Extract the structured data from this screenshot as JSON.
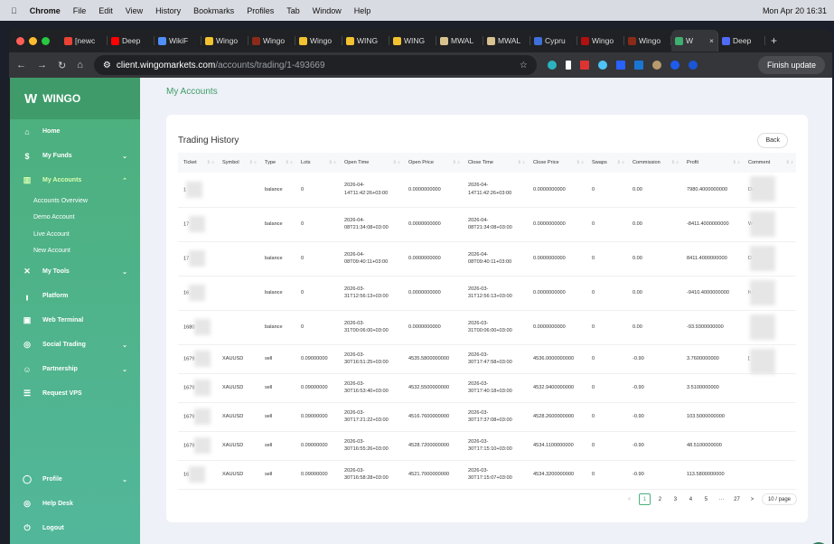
{
  "menubar": {
    "app": "Chrome",
    "items": [
      "File",
      "Edit",
      "View",
      "History",
      "Bookmarks",
      "Profiles",
      "Tab",
      "Window",
      "Help"
    ],
    "clock": "Mon Apr 20  16:31"
  },
  "tabs": [
    {
      "label": "[newc",
      "color": "#ea4335"
    },
    {
      "label": "Deep",
      "color": "#ff0000"
    },
    {
      "label": "WikiF",
      "color": "#4f8ff7"
    },
    {
      "label": "Wingo",
      "color": "#f2c230"
    },
    {
      "label": "Wingo",
      "color": "#8a2b1a"
    },
    {
      "label": "Wingo",
      "color": "#f2c230"
    },
    {
      "label": "WING",
      "color": "#f2c230"
    },
    {
      "label": "WING",
      "color": "#f2c230"
    },
    {
      "label": "MWAL",
      "color": "#d8c28f"
    },
    {
      "label": "MWAL",
      "color": "#d8c28f"
    },
    {
      "label": "Cypru",
      "color": "#3f6fd8"
    },
    {
      "label": "Wingo",
      "color": "#b01010"
    },
    {
      "label": "Wingo",
      "color": "#8a2b1a"
    },
    {
      "label": "W",
      "color": "#3fae6e",
      "active": true
    },
    {
      "label": "Deep",
      "color": "#4f6bf7"
    }
  ],
  "url": {
    "host": "client.wingomarkets.com",
    "path": "/accounts/trading/1-493669"
  },
  "finish_update": "Finish update",
  "sidebar": {
    "logo": "WINGO",
    "items": [
      {
        "label": "Home",
        "icon": "home-icon",
        "glyph": "⌂"
      },
      {
        "label": "My Funds",
        "icon": "dollar-icon",
        "glyph": "$",
        "chev": "⌄"
      },
      {
        "label": "My Accounts",
        "icon": "accounts-icon",
        "glyph": "▥",
        "chev": "⌃",
        "active": true
      }
    ],
    "sub": [
      "Accounts Overview",
      "Demo Account",
      "Live Account",
      "New Account"
    ],
    "items2": [
      {
        "label": "My Tools",
        "icon": "tools-icon",
        "glyph": "✕",
        "chev": "⌄"
      },
      {
        "label": "Platform",
        "icon": "chart-icon",
        "glyph": "╻"
      },
      {
        "label": "Web Terminal",
        "icon": "terminal-icon",
        "glyph": "▣"
      },
      {
        "label": "Social Trading",
        "icon": "social-icon",
        "glyph": "◎",
        "chev": "⌄"
      },
      {
        "label": "Partnership",
        "icon": "partner-icon",
        "glyph": "☺",
        "chev": "⌄"
      },
      {
        "label": "Request VPS",
        "icon": "server-icon",
        "glyph": "☰"
      }
    ],
    "bottom": [
      {
        "label": "Profile",
        "icon": "profile-icon",
        "glyph": "◯",
        "chev": "⌄"
      },
      {
        "label": "Help Desk",
        "icon": "help-icon",
        "glyph": "◎"
      },
      {
        "label": "Logout",
        "icon": "logout-icon",
        "glyph": "⏻"
      }
    ]
  },
  "page_title": "My Accounts",
  "card": {
    "title": "Trading History",
    "back": "Back"
  },
  "columns": [
    "Ticket",
    "Symbol",
    "Type",
    "Lots",
    "Open Time",
    "Open Price",
    "Close Time",
    "Close Price",
    "Swaps",
    "Commission",
    "Profit",
    "Comment"
  ],
  "rows": [
    [
      "1",
      "",
      "balance",
      "0",
      "2026-04-14T11:42:26+03:00",
      "0.0000000000",
      "2026-04-14T11:42:26+03:00",
      "0.0000000000",
      "0",
      "0.00",
      "7980.4000000000",
      "De Wi"
    ],
    [
      "17",
      "",
      "balance",
      "0",
      "2026-04-08T21:34:08+03:00",
      "0.0000000000",
      "2026-04-08T21:34:08+03:00",
      "0.0000000000",
      "0",
      "0.00",
      "-8411.4000000000",
      "W -( 2"
    ],
    [
      "17",
      "",
      "balance",
      "0",
      "2026-04-08T09:40:11+03:00",
      "0.0000000000",
      "2026-04-08T09:40:11+03:00",
      "0.0000000000",
      "0",
      "0.00",
      "8411.4000000000",
      "D W"
    ],
    [
      "16",
      "",
      "balance",
      "0",
      "2026-03-31T12:56:13+03:00",
      "0.0000000000",
      "2026-03-31T12:56:13+03:00",
      "0.0000000000",
      "0",
      "0.00",
      "-9410.4000000000",
      "h ID"
    ],
    [
      "1680",
      "",
      "balance",
      "0",
      "2026-03-31T00:06:00+03:00",
      "0.0000000000",
      "2026-03-31T00:06:00+03:00",
      "0.0000000000",
      "0",
      "0.00",
      "-93.9300000000",
      ""
    ],
    [
      "1679",
      "XAUUSD",
      "sell",
      "0.09000000",
      "2026-03-30T16:51:25+03:00",
      "4535.5800000000",
      "2026-03-30T17:47:58+03:00",
      "4536.0000000000",
      "0",
      "-0.90",
      "3.7600000000",
      "["
    ],
    [
      "1679",
      "XAUUSD",
      "sell",
      "0.09000000",
      "2026-03-30T16:53:40+03:00",
      "4532.5500000000",
      "2026-03-30T17:40:18+03:00",
      "4532.9400000000",
      "0",
      "-0.90",
      "3.5100000000",
      ""
    ],
    [
      "1679",
      "XAUUSD",
      "sell",
      "0.09000000",
      "2026-03-30T17:21:22+03:00",
      "4516.7600000000",
      "2026-03-30T17:37:08+03:00",
      "4528.2600000000",
      "0",
      "-0.90",
      "103.5000000000",
      ""
    ],
    [
      "1679",
      "XAUUSD",
      "sell",
      "0.09000000",
      "2026-03-30T16:55:26+03:00",
      "4528.7200000000",
      "2026-03-30T17:15:10+03:00",
      "4534.1100000000",
      "0",
      "-0.90",
      "48.5100000000",
      ""
    ],
    [
      "16",
      "XAUUSD",
      "sell",
      "0.09000000",
      "2026-03-30T16:58:28+03:00",
      "4521.7000000000",
      "2026-03-30T17:15:07+03:00",
      "4534.3200000000",
      "0",
      "-0.90",
      "113.5800000000",
      ""
    ]
  ],
  "pagination": {
    "prev": "<",
    "pages": [
      "1",
      "2",
      "3",
      "4",
      "5",
      "···",
      "27"
    ],
    "current": "1",
    "next": ">",
    "page_size": "10 / page"
  }
}
